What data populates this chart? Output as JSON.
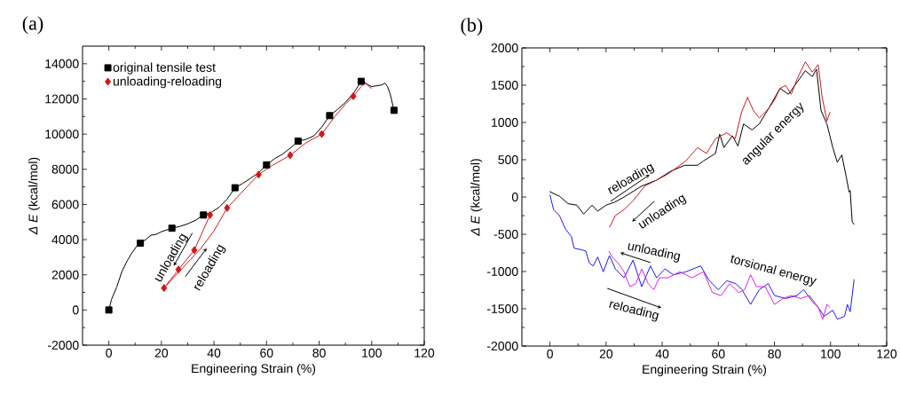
{
  "chart_data": [
    {
      "type": "line",
      "title": "(a)",
      "xlabel": "Engineering Strain (%)",
      "ylabel": "*Δ E* (kcal/mol)",
      "xlim": [
        -10,
        120
      ],
      "ylim": [
        -2000,
        15000
      ],
      "xticks": [
        0,
        20,
        40,
        60,
        80,
        100,
        120
      ],
      "yticks": [
        -2000,
        0,
        2000,
        4000,
        6000,
        8000,
        10000,
        12000,
        14000
      ],
      "legend": "top left",
      "series": [
        {
          "type": "line",
          "color": "#000000",
          "x": [
            0,
            1,
            3,
            5,
            7,
            9,
            11,
            12,
            14,
            16,
            18,
            20,
            22,
            24,
            27,
            30,
            33,
            36,
            39,
            42,
            45,
            48,
            51,
            54,
            57,
            60,
            63,
            66,
            69,
            72,
            75,
            78,
            81,
            84,
            87,
            90,
            93,
            96,
            98,
            100,
            102,
            104,
            105,
            106,
            107,
            108.5
          ],
          "values": [
            0,
            600,
            1300,
            2200,
            2800,
            3300,
            3700,
            3800,
            4000,
            4250,
            4300,
            4450,
            4550,
            4650,
            4750,
            4900,
            5100,
            5400,
            5550,
            5850,
            6300,
            6950,
            7200,
            7500,
            7800,
            8250,
            8600,
            8850,
            9200,
            9600,
            9700,
            9900,
            10400,
            11050,
            11400,
            11800,
            12300,
            13000,
            12850,
            12700,
            12750,
            12800,
            12900,
            12700,
            12300,
            11350
          ]
        },
        {
          "type": "scatter",
          "name": "original tensile test",
          "color": "#000000",
          "marker": "square",
          "x": [
            0,
            12,
            24,
            36,
            48,
            60,
            72,
            84,
            96,
            108.5
          ],
          "values": [
            0,
            3800,
            4650,
            5400,
            6950,
            8250,
            9600,
            11050,
            13000,
            11350
          ]
        },
        {
          "type": "line",
          "color": "#d01818",
          "x": [
            36,
            38.5,
            32.5,
            26.5,
            21,
            25,
            30,
            35,
            40,
            45,
            50,
            57,
            62,
            69,
            75,
            81,
            86,
            90,
            93,
            96,
            97.5,
            99,
            100
          ],
          "values": [
            5400,
            5400,
            3400,
            2300,
            1250,
            1900,
            2700,
            3500,
            4500,
            5800,
            6600,
            7700,
            8200,
            8800,
            9500,
            10000,
            11000,
            11700,
            12150,
            12700,
            12950,
            12700,
            12600
          ]
        },
        {
          "type": "scatter",
          "name": "unloading-reloading",
          "color": "#d01818",
          "marker": "diamond",
          "x": [
            21,
            26.5,
            32.5,
            38.5,
            45,
            57,
            69,
            81,
            93
          ],
          "values": [
            1250,
            2300,
            3400,
            5400,
            5800,
            7700,
            8800,
            10000,
            12150
          ]
        }
      ],
      "annotations": [
        "unloading",
        "reloading"
      ]
    },
    {
      "type": "line",
      "title": "(b)",
      "xlabel": "Engineering Strain (%)",
      "ylabel": "*Δ E* (kcal/mol)",
      "xlim": [
        -10,
        120
      ],
      "ylim": [
        -2000,
        2000
      ],
      "xticks": [
        0,
        20,
        40,
        60,
        80,
        100,
        120
      ],
      "yticks": [
        -2000,
        -1500,
        -1000,
        -500,
        0,
        500,
        1000,
        1500,
        2000
      ],
      "series": [
        {
          "color": "#000000",
          "x": [
            0.2,
            0,
            3.4,
            6.5,
            9.6,
            12,
            15,
            17,
            20,
            23,
            26,
            32.7,
            38,
            43,
            48,
            52.6,
            54.7,
            59,
            60.5,
            62,
            65,
            67,
            69,
            72,
            74.6,
            77.8,
            82,
            85,
            88,
            91,
            93.5,
            95,
            96.6,
            98.7,
            100.8,
            102.4,
            104,
            105.6,
            106.6,
            107,
            107.7,
            108.4
          ],
          "values": [
            75,
            70,
            10,
            -90,
            -110,
            -230,
            -110,
            -190,
            -110,
            -70,
            -10,
            147,
            226,
            345,
            425,
            425,
            484,
            584,
            842,
            663,
            822,
            683,
            980,
            900,
            980,
            1180,
            1457,
            1378,
            1536,
            1695,
            1616,
            1715,
            1160,
            980,
            663,
            465,
            564,
            266,
            67,
            87,
            -330,
            -370
          ]
        },
        {
          "color": "#d01818",
          "x": [
            21.2,
            23.3,
            26.4,
            29.6,
            33.8,
            38,
            42,
            46.3,
            48.4,
            52.6,
            55.8,
            59,
            63,
            66,
            68.3,
            70.4,
            72.5,
            74.6,
            77.8,
            80,
            82,
            84,
            86,
            88,
            91,
            93.5,
            95.6,
            97,
            98.7,
            99.8
          ],
          "values": [
            -409,
            -250,
            -170,
            -52,
            147,
            226,
            306,
            425,
            484,
            663,
            584,
            782,
            861,
            782,
            1140,
            1338,
            1160,
            1060,
            1180,
            1298,
            1457,
            1497,
            1378,
            1576,
            1814,
            1675,
            1775,
            1338,
            1020,
            1140
          ]
        },
        {
          "color": "#1a1aff",
          "x": [
            0,
            1.3,
            3.4,
            5.5,
            7.6,
            8.6,
            11.2,
            12.8,
            14,
            15.4,
            17,
            19,
            21.2,
            23.3,
            26.4,
            29.6,
            32.7,
            35.8,
            38,
            41,
            44,
            48.4,
            53.7,
            56.8,
            60,
            63,
            66.3,
            68.4,
            71.5,
            74.6,
            77.8,
            80,
            84,
            88,
            90.4,
            93.5,
            95.6,
            97.7,
            100.8,
            102.4,
            105,
            106,
            107,
            107.7,
            108.4
          ],
          "values": [
            28,
            -170,
            -250,
            -429,
            -528,
            -687,
            -707,
            -726,
            -885,
            -925,
            -806,
            -1004,
            -786,
            -965,
            -1084,
            -846,
            -1203,
            -925,
            -1084,
            -965,
            -1044,
            -1004,
            -925,
            -1124,
            -1243,
            -1124,
            -1163,
            -1243,
            -1441,
            -1243,
            -1163,
            -1322,
            -1362,
            -1322,
            -1243,
            -1401,
            -1481,
            -1600,
            -1520,
            -1640,
            -1600,
            -1441,
            -1540,
            -1322,
            -1104
          ]
        },
        {
          "color": "#e020e0",
          "x": [
            21,
            22.2,
            24.3,
            26.4,
            28.5,
            30.6,
            32.7,
            35,
            37,
            39,
            42,
            46.3,
            50.5,
            54.7,
            57.9,
            61,
            64,
            67.3,
            69.4,
            71.5,
            73.6,
            76.7,
            80,
            83,
            86,
            89.3,
            92.5,
            95.6,
            97.2,
            98.7,
            99.8
          ],
          "values": [
            -726,
            -806,
            -885,
            -1004,
            -1203,
            -1163,
            -965,
            -1163,
            -1243,
            -1084,
            -1084,
            -1004,
            -1084,
            -1004,
            -1282,
            -1322,
            -1163,
            -1282,
            -1243,
            -1044,
            -1203,
            -1203,
            -1441,
            -1362,
            -1322,
            -1362,
            -1322,
            -1481,
            -1640,
            -1441,
            -1481
          ]
        }
      ],
      "annotations": [
        "reloading",
        "unloading",
        "angular energy",
        "unloading",
        "torsional energy",
        "reloading"
      ]
    }
  ]
}
